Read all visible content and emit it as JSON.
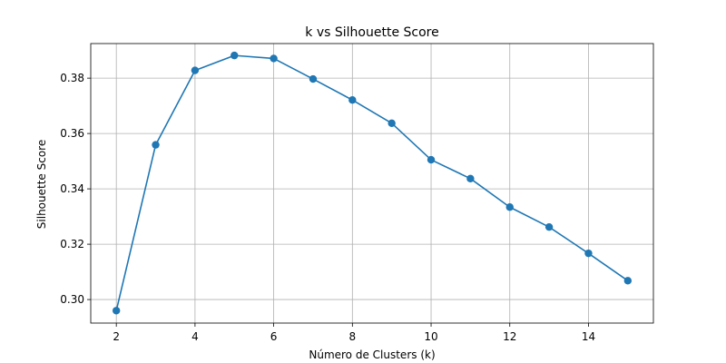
{
  "chart_data": {
    "type": "line",
    "title": "k vs Silhouette Score",
    "xlabel": "Número de Clusters (k)",
    "ylabel": "Silhouette Score",
    "x": [
      2,
      3,
      4,
      5,
      6,
      7,
      8,
      9,
      10,
      11,
      12,
      13,
      14,
      15
    ],
    "series": [
      {
        "name": "Silhouette Score",
        "values": [
          0.296,
          0.3559,
          0.3828,
          0.3882,
          0.3871,
          0.3797,
          0.3721,
          0.3637,
          0.3505,
          0.3437,
          0.3334,
          0.3262,
          0.3167,
          0.3068
        ]
      }
    ],
    "xlim": [
      1.35,
      15.65
    ],
    "ylim": [
      0.2915,
      0.3925
    ],
    "xticks": [
      2,
      4,
      6,
      8,
      10,
      12,
      14
    ],
    "xtick_labels": [
      "2",
      "4",
      "6",
      "8",
      "10",
      "12",
      "14"
    ],
    "yticks": [
      0.3,
      0.32,
      0.34,
      0.36,
      0.38
    ],
    "ytick_labels": [
      "0.30",
      "0.32",
      "0.34",
      "0.36",
      "0.38"
    ],
    "grid": true,
    "color": "#1f77b4",
    "marker": "circle"
  }
}
